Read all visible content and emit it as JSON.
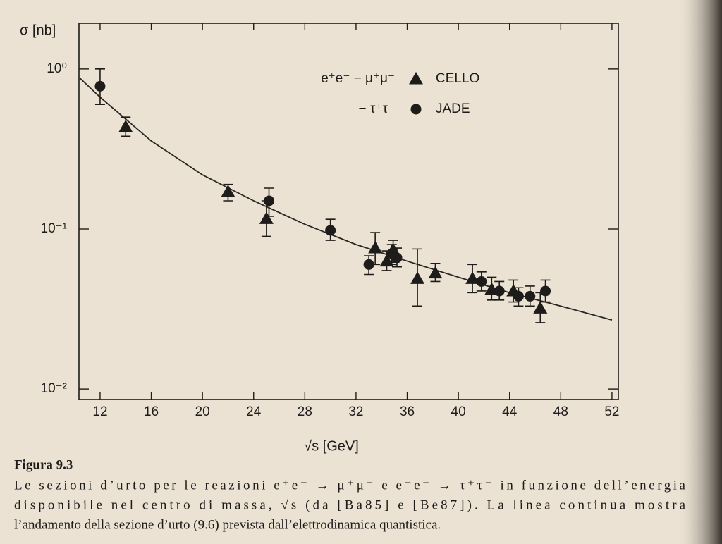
{
  "chart_data": {
    "type": "scatter",
    "y_label": "σ [nb]",
    "x_label": "√s [GeV]",
    "log_y": true,
    "xlim": [
      10.35,
      52.5
    ],
    "ylim": [
      0.0086,
      1.93
    ],
    "xticks": [
      12,
      16,
      20,
      24,
      28,
      32,
      36,
      40,
      44,
      48,
      52
    ],
    "yticks": [
      {
        "value": 1,
        "label": "10⁰"
      },
      {
        "value": 0.1,
        "label": "10⁻¹"
      },
      {
        "value": 0.01,
        "label": "10⁻²"
      }
    ],
    "reaction_labels": [
      "e⁺e⁻ − μ⁺μ⁻",
      "− τ⁺τ⁻"
    ],
    "series": [
      {
        "name": "CELLO",
        "marker": "triangle",
        "color": "#1e1c1a",
        "x": [
          14,
          22,
          25,
          33.5,
          34.4,
          34.9,
          36.8,
          38.2,
          41.1,
          42.6,
          44.3,
          46.4
        ],
        "values": [
          0.435,
          0.171,
          0.116,
          0.076,
          0.063,
          0.074,
          0.049,
          0.053,
          0.049,
          0.042,
          0.041,
          0.032
        ],
        "lower": [
          0.38,
          0.15,
          0.09,
          0.06,
          0.055,
          0.062,
          0.033,
          0.047,
          0.04,
          0.036,
          0.035,
          0.026
        ],
        "upper": [
          0.5,
          0.19,
          0.15,
          0.095,
          0.073,
          0.085,
          0.075,
          0.061,
          0.06,
          0.05,
          0.048,
          0.04
        ]
      },
      {
        "name": "JADE",
        "marker": "circle",
        "color": "#1e1c1a",
        "x": [
          12,
          25.2,
          30,
          33,
          34.8,
          35.2,
          41.8,
          43.2,
          44.7,
          45.6,
          46.8
        ],
        "values": [
          0.78,
          0.15,
          0.098,
          0.06,
          0.07,
          0.066,
          0.047,
          0.041,
          0.038,
          0.038,
          0.041
        ],
        "lower": [
          0.6,
          0.12,
          0.085,
          0.052,
          0.06,
          0.058,
          0.041,
          0.036,
          0.033,
          0.033,
          0.035
        ],
        "upper": [
          1.0,
          0.18,
          0.115,
          0.068,
          0.08,
          0.076,
          0.054,
          0.047,
          0.043,
          0.044,
          0.048
        ]
      }
    ],
    "curve": {
      "color": "#2a2826",
      "x": [
        10.4,
        12,
        16,
        20,
        24,
        28,
        32,
        36,
        40,
        44,
        48,
        52
      ],
      "values": [
        0.88,
        0.666,
        0.355,
        0.218,
        0.15,
        0.107,
        0.08,
        0.063,
        0.05,
        0.04,
        0.033,
        0.027
      ]
    },
    "caption": {
      "label": "Figura 9.3",
      "lines": [
        "Le sezioni d’urto per le reazioni e⁺e⁻ → μ⁺μ⁻ e e⁺e⁻ → τ⁺τ⁻ in funzione dell’energia",
        "disponibile nel centro di massa, √s (da [Ba85] e [Be87]). La linea continua mostra",
        "l’andamento della sezione d’urto (9.6) prevista dall’elettrodinamica quantistica."
      ]
    }
  }
}
